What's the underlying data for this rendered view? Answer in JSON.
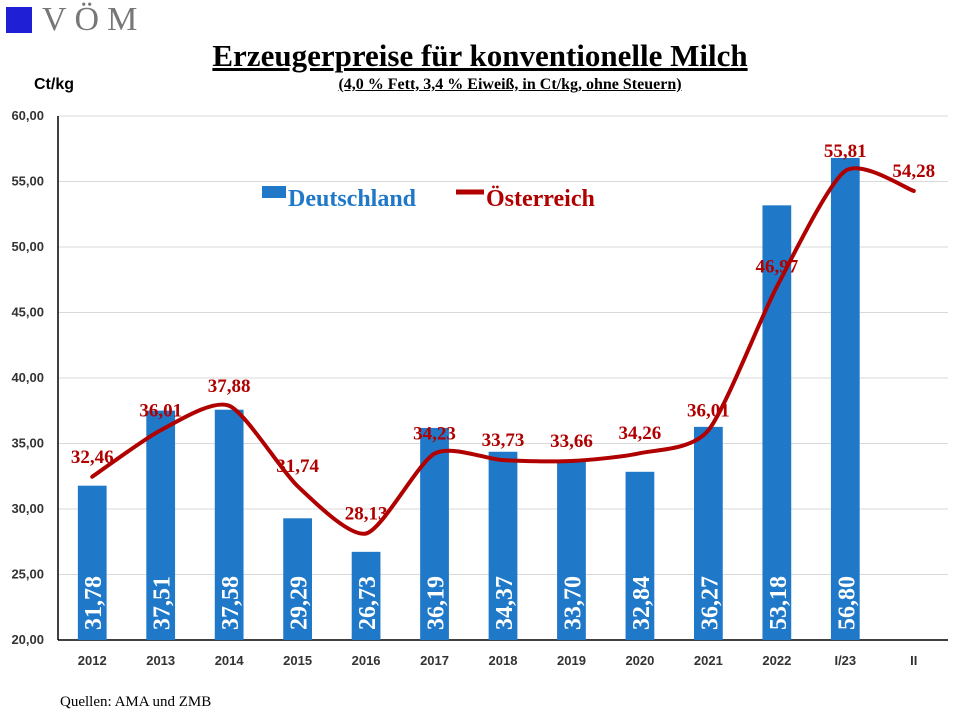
{
  "logo": {
    "text": "VÖM",
    "square_color": "#1f1fd6"
  },
  "source": "Quellen: AMA und ZMB",
  "chart_data": {
    "type": "bar",
    "title": "Erzeugerpreise für konventionelle Milch",
    "subtitle": "(4,0 % Fett, 3,4 % Eiweiß, in Ct/kg, ohne Steuern)",
    "ylabel": "Ct/kg",
    "xlabel": "",
    "ylim": [
      20,
      60
    ],
    "yticks": [
      "20,00",
      "25,00",
      "30,00",
      "35,00",
      "40,00",
      "45,00",
      "50,00",
      "55,00",
      "60,00"
    ],
    "ytick_values": [
      20,
      25,
      30,
      35,
      40,
      45,
      50,
      55,
      60
    ],
    "grid": true,
    "legend_position": "top-center",
    "categories": [
      "2012",
      "2013",
      "2014",
      "2015",
      "2016",
      "2017",
      "2018",
      "2019",
      "2020",
      "2021",
      "2022",
      "I/23",
      "II"
    ],
    "series": [
      {
        "name": "Deutschland",
        "kind": "bar",
        "color": "#1f78c8",
        "values": [
          31.78,
          37.51,
          37.58,
          29.29,
          26.73,
          36.19,
          34.37,
          33.7,
          32.84,
          36.27,
          53.18,
          56.8,
          null
        ],
        "labels": [
          "31,78",
          "37,51",
          "37,58",
          "29,29",
          "26,73",
          "36,19",
          "34,37",
          "33,70",
          "32,84",
          "36,27",
          "53,18",
          "56,80",
          ""
        ]
      },
      {
        "name": "Österreich",
        "kind": "line",
        "color": "#b00000",
        "values": [
          32.46,
          36.01,
          37.88,
          31.74,
          28.13,
          34.23,
          33.73,
          33.66,
          34.26,
          36.01,
          46.97,
          55.81,
          54.28
        ],
        "labels": [
          "32,46",
          "36,01",
          "37,88",
          "31,74",
          "28,13",
          "34,23",
          "33,73",
          "33,66",
          "34,26",
          "36,01",
          "46,97",
          "55,81",
          "54,28"
        ]
      }
    ]
  }
}
